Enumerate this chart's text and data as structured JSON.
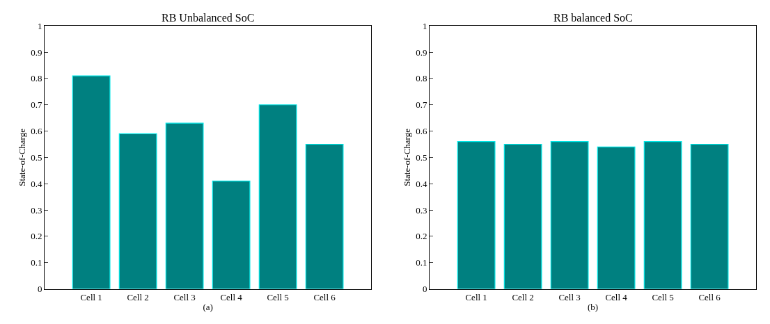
{
  "chart_data": [
    {
      "type": "bar",
      "title": "RB Unbalanced SoC",
      "xlabel": "(a)",
      "ylabel": "State-of-Charge",
      "categories": [
        "Cell 1",
        "Cell 2",
        "Cell 3",
        "Cell 4",
        "Cell 5",
        "Cell 6"
      ],
      "values": [
        0.81,
        0.59,
        0.63,
        0.41,
        0.7,
        0.55
      ],
      "color": "#008080",
      "ylim": [
        0,
        1
      ],
      "yticks": [
        0,
        0.1,
        0.2,
        0.3,
        0.4,
        0.5,
        0.6,
        0.7,
        0.8,
        0.9,
        1
      ]
    },
    {
      "type": "bar",
      "title": "RB balanced SoC",
      "xlabel": "(b)",
      "ylabel": "State-of-Charge",
      "categories": [
        "Cell 1",
        "Cell 2",
        "Cell 3",
        "Cell 4",
        "Cell 5",
        "Cell 6"
      ],
      "values": [
        0.56,
        0.55,
        0.56,
        0.54,
        0.56,
        0.55
      ],
      "color": "#008080",
      "ylim": [
        0,
        1
      ],
      "yticks": [
        0,
        0.1,
        0.2,
        0.3,
        0.4,
        0.5,
        0.6,
        0.7,
        0.8,
        0.9,
        1
      ]
    }
  ]
}
